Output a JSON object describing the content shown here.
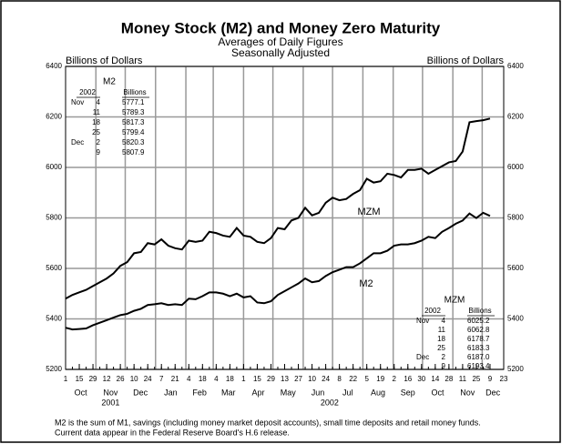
{
  "chart_data": {
    "type": "line",
    "title": "Money Stock (M2) and Money Zero Maturity",
    "subtitle": [
      "Averages of Daily Figures",
      "Seasonally Adjusted"
    ],
    "y_label": "Billions of Dollars",
    "y2_label": "Billions of Dollars",
    "x": [
      "2001-10-01",
      "2001-10-08",
      "2001-10-15",
      "2001-10-22",
      "2001-10-29",
      "2001-11-05",
      "2001-11-12",
      "2001-11-19",
      "2001-11-26",
      "2001-12-03",
      "2001-12-10",
      "2001-12-17",
      "2001-12-24",
      "2001-12-31",
      "2002-01-07",
      "2002-01-14",
      "2002-01-21",
      "2002-01-28",
      "2002-02-04",
      "2002-02-11",
      "2002-02-18",
      "2002-02-25",
      "2002-03-04",
      "2002-03-11",
      "2002-03-18",
      "2002-03-25",
      "2002-04-01",
      "2002-04-08",
      "2002-04-15",
      "2002-04-22",
      "2002-04-29",
      "2002-05-06",
      "2002-05-13",
      "2002-05-20",
      "2002-05-27",
      "2002-06-03",
      "2002-06-10",
      "2002-06-17",
      "2002-06-24",
      "2002-07-01",
      "2002-07-08",
      "2002-07-15",
      "2002-07-22",
      "2002-07-29",
      "2002-08-05",
      "2002-08-12",
      "2002-08-19",
      "2002-08-26",
      "2002-09-02",
      "2002-09-09",
      "2002-09-16",
      "2002-09-23",
      "2002-09-30",
      "2002-10-07",
      "2002-10-14",
      "2002-10-21",
      "2002-10-28",
      "2002-11-04",
      "2002-11-11",
      "2002-11-18",
      "2002-11-25",
      "2002-12-02",
      "2002-12-09"
    ],
    "series": [
      {
        "name": "MZM",
        "color": "#000000",
        "values": [
          5480,
          5495,
          5505,
          5515,
          5530,
          5545,
          5560,
          5580,
          5610,
          5625,
          5660,
          5665,
          5700,
          5695,
          5715,
          5690,
          5680,
          5675,
          5710,
          5705,
          5710,
          5745,
          5740,
          5730,
          5725,
          5760,
          5730,
          5725,
          5705,
          5700,
          5720,
          5760,
          5755,
          5790,
          5800,
          5840,
          5810,
          5820,
          5860,
          5880,
          5870,
          5875,
          5895,
          5910,
          5955,
          5940,
          5945,
          5975,
          5970,
          5960,
          5990,
          5990,
          5995,
          5975,
          5990,
          6005,
          6020,
          6025.2,
          6062.8,
          6178.7,
          6183.3,
          6187.0,
          6193.4
        ]
      },
      {
        "name": "M2",
        "color": "#000000",
        "values": [
          5365,
          5358,
          5360,
          5362,
          5375,
          5385,
          5395,
          5405,
          5415,
          5420,
          5432,
          5440,
          5455,
          5458,
          5462,
          5455,
          5458,
          5455,
          5480,
          5478,
          5490,
          5505,
          5505,
          5500,
          5490,
          5500,
          5485,
          5490,
          5465,
          5462,
          5470,
          5495,
          5510,
          5525,
          5540,
          5560,
          5545,
          5550,
          5570,
          5585,
          5595,
          5605,
          5605,
          5620,
          5640,
          5660,
          5660,
          5670,
          5690,
          5695,
          5695,
          5700,
          5710,
          5725,
          5720,
          5745,
          5760,
          5777.1,
          5789.3,
          5817.3,
          5799.4,
          5820.3,
          5807.9
        ]
      }
    ],
    "xlim": [
      "2001-10-01",
      "2002-12-23"
    ],
    "xticks": [
      {
        "value": "2001-10-01",
        "label": "1"
      },
      {
        "value": "2001-10-15",
        "label": "15"
      },
      {
        "value": "2001-10-29",
        "label": "29"
      },
      {
        "value": "2001-11-12",
        "label": "12"
      },
      {
        "value": "2001-11-26",
        "label": "26"
      },
      {
        "value": "2001-12-10",
        "label": "10"
      },
      {
        "value": "2001-12-24",
        "label": "24"
      },
      {
        "value": "2002-01-07",
        "label": "7"
      },
      {
        "value": "2002-01-21",
        "label": "21"
      },
      {
        "value": "2002-02-04",
        "label": "4"
      },
      {
        "value": "2002-02-18",
        "label": "18"
      },
      {
        "value": "2002-03-04",
        "label": "4"
      },
      {
        "value": "2002-03-18",
        "label": "18"
      },
      {
        "value": "2002-04-01",
        "label": "1"
      },
      {
        "value": "2002-04-15",
        "label": "15"
      },
      {
        "value": "2002-04-29",
        "label": "29"
      },
      {
        "value": "2002-05-13",
        "label": "13"
      },
      {
        "value": "2002-05-27",
        "label": "27"
      },
      {
        "value": "2002-06-10",
        "label": "10"
      },
      {
        "value": "2002-06-24",
        "label": "24"
      },
      {
        "value": "2002-07-08",
        "label": "8"
      },
      {
        "value": "2002-07-22",
        "label": "22"
      },
      {
        "value": "2002-08-05",
        "label": "5"
      },
      {
        "value": "2002-08-19",
        "label": "19"
      },
      {
        "value": "2002-09-02",
        "label": "2"
      },
      {
        "value": "2002-09-16",
        "label": "16"
      },
      {
        "value": "2002-09-30",
        "label": "30"
      },
      {
        "value": "2002-10-14",
        "label": "14"
      },
      {
        "value": "2002-10-28",
        "label": "28"
      },
      {
        "value": "2002-11-11",
        "label": "11"
      },
      {
        "value": "2002-11-25",
        "label": "25"
      },
      {
        "value": "2002-12-09",
        "label": "9"
      },
      {
        "value": "2002-12-23",
        "label": "23"
      }
    ],
    "x_month_labels": [
      {
        "value": "2001-10",
        "label": "Oct"
      },
      {
        "value": "2001-11",
        "label": "Nov"
      },
      {
        "value": "2001-12",
        "label": "Dec"
      },
      {
        "value": "2002-01",
        "label": "Jan"
      },
      {
        "value": "2002-02",
        "label": "Feb"
      },
      {
        "value": "2002-03",
        "label": "Mar"
      },
      {
        "value": "2002-04",
        "label": "Apr"
      },
      {
        "value": "2002-05",
        "label": "May"
      },
      {
        "value": "2002-06",
        "label": "Jun"
      },
      {
        "value": "2002-07",
        "label": "Jul"
      },
      {
        "value": "2002-08",
        "label": "Aug"
      },
      {
        "value": "2002-09",
        "label": "Sep"
      },
      {
        "value": "2002-10",
        "label": "Oct"
      },
      {
        "value": "2002-11",
        "label": "Nov"
      },
      {
        "value": "2002-12",
        "label": "Dec"
      }
    ],
    "x_year_labels": [
      2001,
      2002
    ],
    "ylim": [
      5200,
      6400
    ],
    "yticks": [
      5200,
      5400,
      5600,
      5800,
      6000,
      6200,
      6400
    ],
    "y2lim": [
      5200,
      6400
    ],
    "y2ticks": [
      5200,
      5400,
      5600,
      5800,
      6000,
      6200,
      6400
    ],
    "grid": true,
    "annotations": [
      "MZM",
      "M2"
    ]
  },
  "tables": [
    {
      "title": "M2",
      "year": "2002",
      "unit": "Billions",
      "rows": [
        {
          "month": "Nov",
          "day": "4",
          "value": "5777.1"
        },
        {
          "day": "11",
          "value": "5789.3"
        },
        {
          "day": "18",
          "value": "5817.3"
        },
        {
          "day": "25",
          "value": "5799.4"
        },
        {
          "month": "Dec",
          "day": "2",
          "value": "5820.3"
        },
        {
          "day": "9",
          "value": "5807.9"
        }
      ]
    },
    {
      "title": "MZM",
      "year": "2002",
      "unit": "Billions",
      "rows": [
        {
          "month": "Nov",
          "day": "4",
          "value": "6025.2"
        },
        {
          "day": "11",
          "value": "6062.8"
        },
        {
          "day": "18",
          "value": "6178.7"
        },
        {
          "day": "25",
          "value": "6183.3"
        },
        {
          "month": "Dec",
          "day": "2",
          "value": "6187.0"
        },
        {
          "day": "9",
          "value": "6193.4"
        }
      ]
    }
  ],
  "footnotes": [
    "M2 is the sum of M1, savings (including money market deposit accounts), small time deposits and retail money funds.",
    "Current data appear in the Federal Reserve Board's H.6 release."
  ]
}
